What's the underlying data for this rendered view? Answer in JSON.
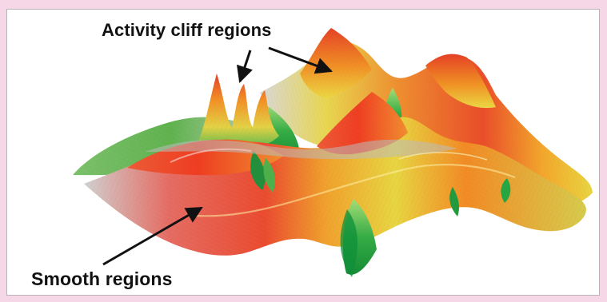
{
  "labels": {
    "activity_cliff": "Activity cliff regions",
    "smooth": "Smooth regions"
  },
  "colors": {
    "background": "#f5d7e7",
    "panel": "#ffffff",
    "red": "#e93a28",
    "orange": "#ee7d25",
    "yellow": "#e9d83c",
    "green": "#31b548",
    "gray": "#c9c9c9"
  }
}
